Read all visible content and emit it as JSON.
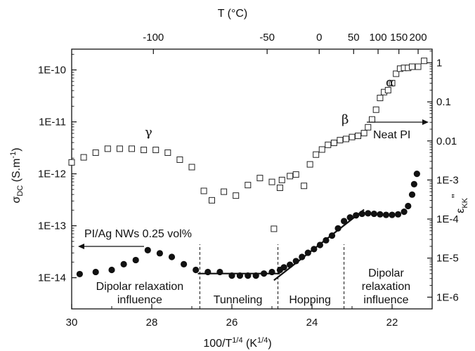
{
  "chart_data": {
    "type": "scatter",
    "x_axis": {
      "min": 30,
      "max": 21,
      "ticks": [
        30,
        28,
        26,
        24,
        22
      ]
    },
    "top_axis": {
      "ticks": [
        {
          "label": "-100",
          "x": 27.96
        },
        {
          "label": "-50",
          "x": 25.12
        },
        {
          "label": "0",
          "x": 23.82
        },
        {
          "label": "50",
          "x": 22.96
        },
        {
          "label": "100",
          "x": 22.35
        },
        {
          "label": "150",
          "x": 21.83
        },
        {
          "label": "200",
          "x": 21.35
        }
      ]
    },
    "y_left": {
      "min_exp": -14.6,
      "max_exp": -9.6,
      "ticks": [
        "1E-14",
        "1E-13",
        "1E-12",
        "1E-11",
        "1E-10"
      ],
      "tick_exps": [
        -14,
        -13,
        -12,
        -11,
        -10
      ]
    },
    "y_right": {
      "min_exp": -6.3,
      "max_exp": 0.35,
      "ticks": [
        "1E-6",
        "1E-5",
        "1E-4",
        "1E-3",
        "0.01",
        "0.1",
        "1"
      ],
      "tick_exps": [
        -6,
        -5,
        -4,
        -3,
        -2,
        -1,
        0
      ]
    },
    "series": [
      {
        "name": "PI/Ag NWs 0.25 vol%",
        "axis": "left",
        "marker": "filled-circle",
        "points": [
          [
            29.8,
            -13.93
          ],
          [
            29.4,
            -13.89
          ],
          [
            29.0,
            -13.85
          ],
          [
            28.7,
            -13.74
          ],
          [
            28.4,
            -13.66
          ],
          [
            28.1,
            -13.47
          ],
          [
            27.8,
            -13.53
          ],
          [
            27.5,
            -13.6
          ],
          [
            27.2,
            -13.74
          ],
          [
            26.9,
            -13.85
          ],
          [
            26.6,
            -13.89
          ],
          [
            26.3,
            -13.89
          ],
          [
            26.0,
            -13.96
          ],
          [
            25.8,
            -13.96
          ],
          [
            25.6,
            -13.96
          ],
          [
            25.4,
            -13.96
          ],
          [
            25.2,
            -13.92
          ],
          [
            25.0,
            -13.89
          ],
          [
            24.8,
            -13.85
          ],
          [
            24.7,
            -13.8
          ],
          [
            24.55,
            -13.75
          ],
          [
            24.4,
            -13.68
          ],
          [
            24.25,
            -13.6
          ],
          [
            24.1,
            -13.52
          ],
          [
            23.95,
            -13.45
          ],
          [
            23.8,
            -13.37
          ],
          [
            23.65,
            -13.28
          ],
          [
            23.5,
            -13.19
          ],
          [
            23.35,
            -13.05
          ],
          [
            23.2,
            -12.91
          ],
          [
            23.05,
            -12.84
          ],
          [
            22.9,
            -12.8
          ],
          [
            22.75,
            -12.77
          ],
          [
            22.6,
            -12.76
          ],
          [
            22.45,
            -12.77
          ],
          [
            22.3,
            -12.78
          ],
          [
            22.15,
            -12.79
          ],
          [
            22.0,
            -12.79
          ],
          [
            21.85,
            -12.78
          ],
          [
            21.7,
            -12.73
          ],
          [
            21.6,
            -12.62
          ],
          [
            21.5,
            -12.4
          ],
          [
            21.45,
            -12.2
          ],
          [
            21.38,
            -12.0
          ]
        ]
      },
      {
        "name": "Neat PI",
        "axis": "right",
        "marker": "open-square",
        "points": [
          [
            30.0,
            -2.55
          ],
          [
            29.7,
            -2.42
          ],
          [
            29.4,
            -2.3
          ],
          [
            29.1,
            -2.2
          ],
          [
            28.8,
            -2.2
          ],
          [
            28.5,
            -2.2
          ],
          [
            28.2,
            -2.23
          ],
          [
            27.9,
            -2.23
          ],
          [
            27.6,
            -2.3
          ],
          [
            27.3,
            -2.48
          ],
          [
            27.0,
            -2.67
          ],
          [
            26.7,
            -3.28
          ],
          [
            26.5,
            -3.52
          ],
          [
            26.2,
            -3.3
          ],
          [
            25.9,
            -3.4
          ],
          [
            25.6,
            -3.13
          ],
          [
            25.3,
            -2.95
          ],
          [
            25.0,
            -3.05
          ],
          [
            24.8,
            -3.2
          ],
          [
            24.75,
            -3.0
          ],
          [
            24.55,
            -2.9
          ],
          [
            24.4,
            -2.86
          ],
          [
            24.2,
            -3.15
          ],
          [
            24.05,
            -2.6
          ],
          [
            23.9,
            -2.35
          ],
          [
            23.75,
            -2.22
          ],
          [
            23.6,
            -2.1
          ],
          [
            23.45,
            -2.05
          ],
          [
            23.3,
            -1.98
          ],
          [
            23.15,
            -1.95
          ],
          [
            23.0,
            -1.9
          ],
          [
            22.85,
            -1.87
          ],
          [
            22.7,
            -1.8
          ],
          [
            22.6,
            -1.65
          ],
          [
            22.5,
            -1.45
          ],
          [
            22.4,
            -1.2
          ],
          [
            22.3,
            -0.9
          ],
          [
            22.2,
            -0.75
          ],
          [
            22.1,
            -0.7
          ],
          [
            22.0,
            -0.52
          ],
          [
            21.9,
            -0.28
          ],
          [
            21.8,
            -0.15
          ],
          [
            21.7,
            -0.13
          ],
          [
            21.6,
            -0.13
          ],
          [
            21.5,
            -0.1
          ],
          [
            21.35,
            -0.1
          ],
          [
            21.2,
            0.05
          ]
        ]
      },
      {
        "name": "outlier",
        "axis": "right",
        "marker": "open-square",
        "points": [
          [
            24.95,
            -4.25
          ]
        ]
      }
    ],
    "fit_lines": [
      {
        "axis": "left",
        "from": [
          26.85,
          -13.92
        ],
        "to": [
          24.8,
          -13.92
        ]
      },
      {
        "axis": "left",
        "from": [
          24.95,
          -14.05
        ],
        "to": [
          22.7,
          -12.69
        ]
      }
    ],
    "dividers": [
      26.8,
      24.85,
      23.2
    ],
    "region_labels": [
      {
        "lines": [
          "Dipolar relaxation",
          "influence"
        ],
        "x": 28.3
      },
      {
        "lines": [
          "Tunneling"
        ],
        "x": 25.85
      },
      {
        "lines": [
          "Hopping"
        ],
        "x": 24.05
      },
      {
        "lines": [
          "Dipolar",
          "relaxation",
          "influence"
        ],
        "x": 22.15
      }
    ],
    "annotations": {
      "alpha": "α",
      "beta": "β",
      "gamma": "γ",
      "neat_pi": "Neat PI",
      "composite": "PI/Ag NWs 0.25 vol%"
    },
    "xlabel_bottom": "100/T¹ᐟ⁴ (K¹ᐟ⁴)",
    "xlabel_top": "T (°C)",
    "ylabel_left": "σDC (S.m⁻¹)",
    "ylabel_right": "ε\"KK"
  }
}
